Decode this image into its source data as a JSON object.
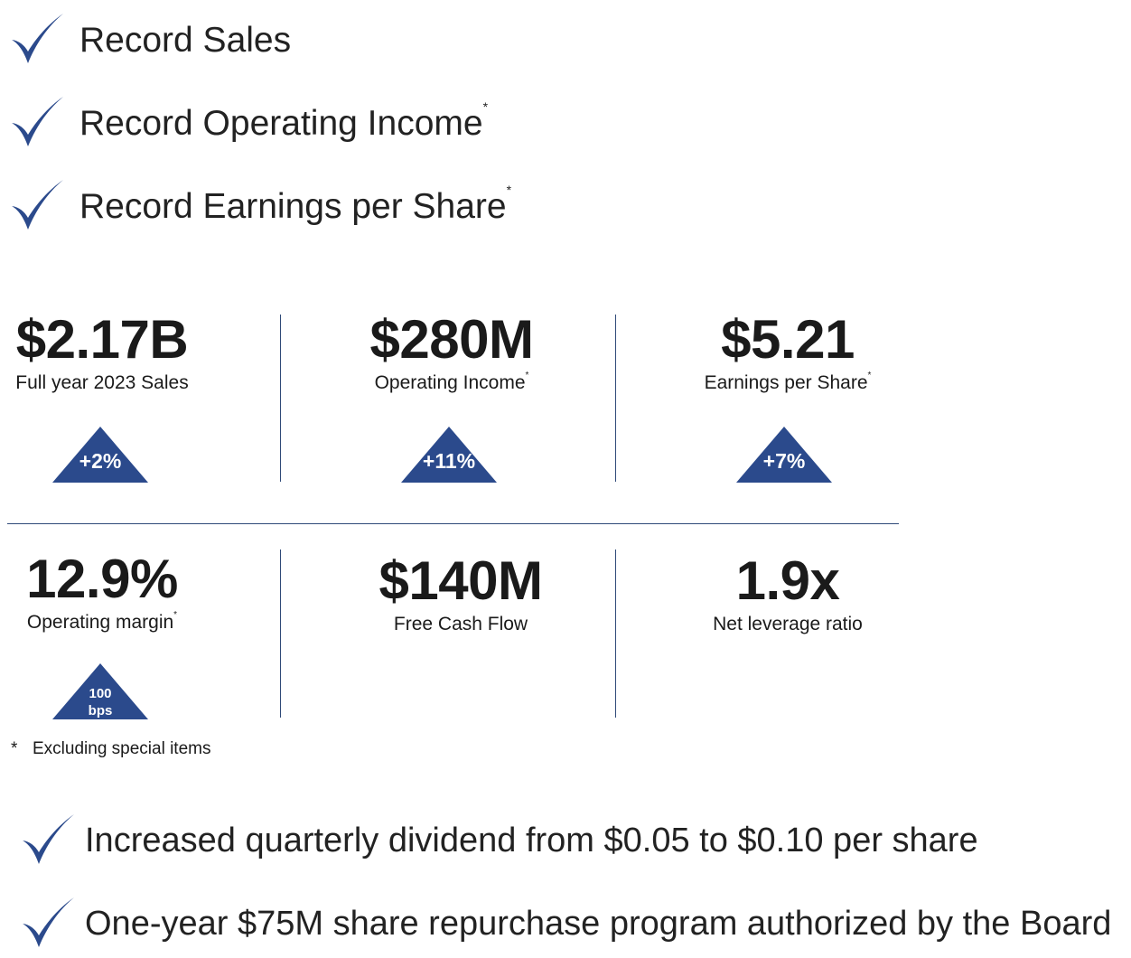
{
  "colors": {
    "accent": "#2b4a8c",
    "divider": "#2f4a78",
    "text": "#1a1a1a"
  },
  "icons": {
    "check": "checkmark-icon",
    "delta": "up-triangle-icon"
  },
  "highlights": [
    {
      "text": "Record Sales",
      "marker": ""
    },
    {
      "text": "Record Operating Income",
      "marker": "*"
    },
    {
      "text": "Record Earnings per Share",
      "marker": "*"
    }
  ],
  "metrics": [
    {
      "value": "$2.17B",
      "label": "Full year 2023 Sales",
      "marker": "",
      "change": "+2%"
    },
    {
      "value": "$280M",
      "label": "Operating Income",
      "marker": "*",
      "change": "+11%"
    },
    {
      "value": "$5.21",
      "label": "Earnings per Share",
      "marker": "*",
      "change": "+7%"
    },
    {
      "value": "12.9%",
      "label": "Operating margin",
      "marker": "*",
      "change_line1": "100",
      "change_line2": "bps"
    },
    {
      "value": "$140M",
      "label": "Free Cash Flow",
      "marker": ""
    },
    {
      "value": "1.9x",
      "label": "Net leverage ratio",
      "marker": ""
    }
  ],
  "footnote": {
    "symbol": "*",
    "text": "Excluding special items"
  },
  "actions": [
    {
      "text": "Increased quarterly dividend from $0.05 to $0.10 per share"
    },
    {
      "text": "One-year $75M share repurchase program authorized by the Board"
    }
  ]
}
